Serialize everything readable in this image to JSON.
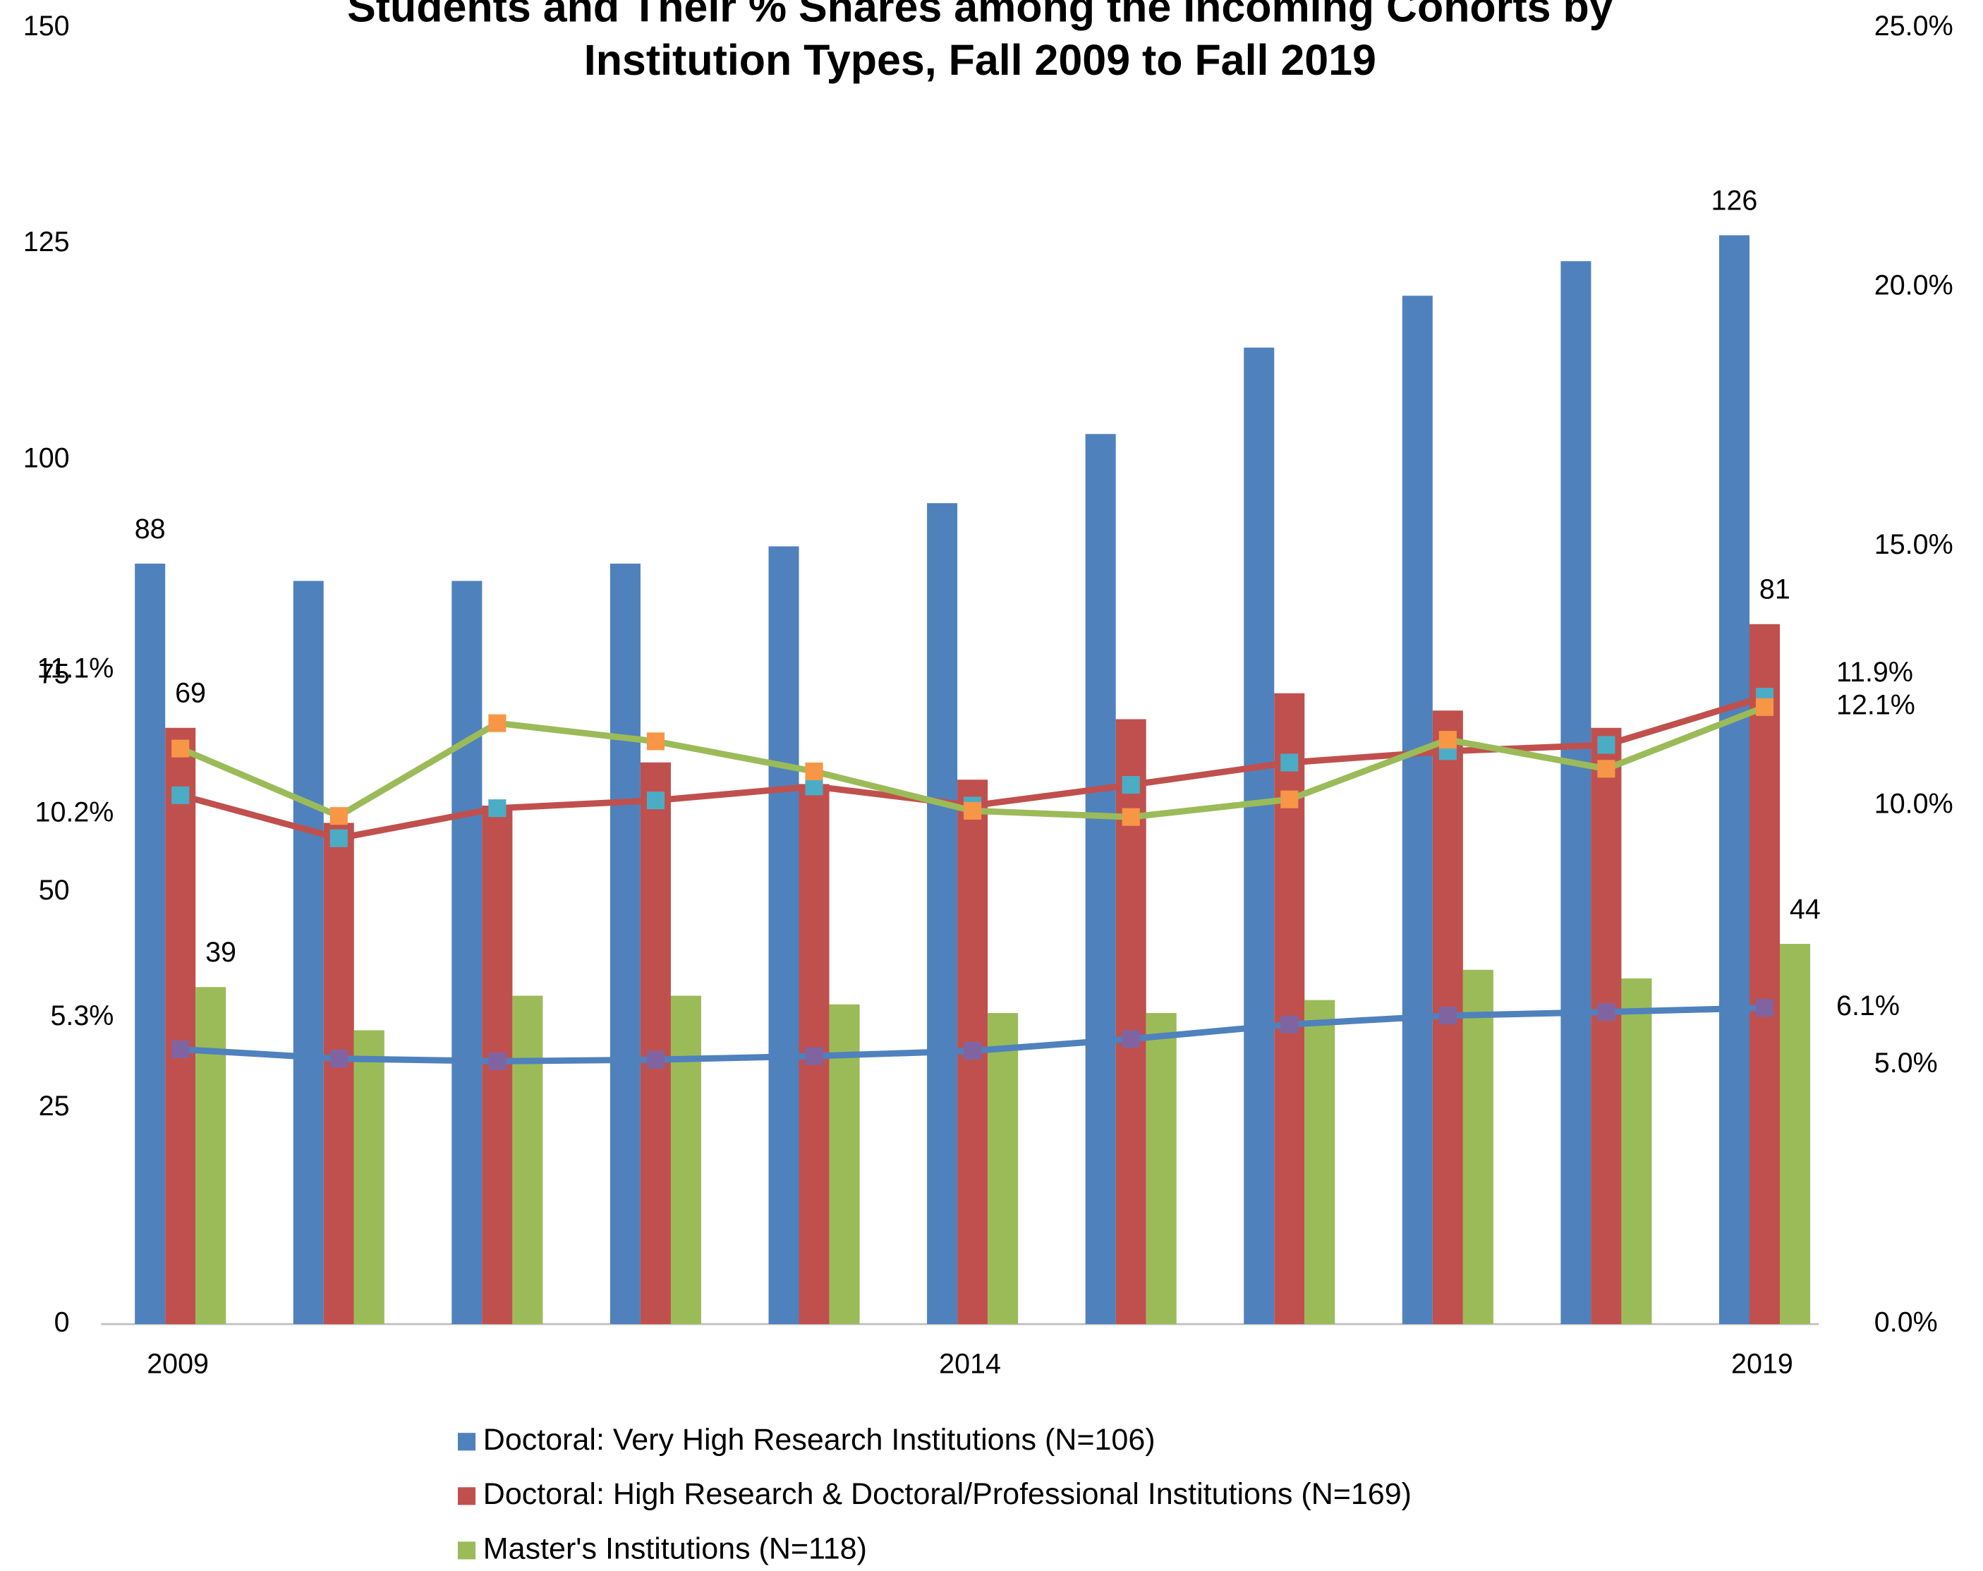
{
  "chart_data": {
    "type": "bar",
    "title": [
      "Students and Their % Shares among the Incoming Cohorts by",
      "Institution Types, Fall 2009 to Fall 2019"
    ],
    "categories": [
      "2009",
      null,
      null,
      null,
      null,
      "2014",
      null,
      null,
      null,
      null,
      "2019"
    ],
    "ylim": [
      0,
      150
    ],
    "yticks": [
      0,
      25,
      50,
      75,
      100,
      125,
      150
    ],
    "y2lim": [
      0,
      25
    ],
    "y2ticks": [
      {
        "value": 0,
        "label": "0.0%"
      },
      {
        "value": 5,
        "label": "5.0%"
      },
      {
        "value": 10,
        "label": "10.0%"
      },
      {
        "value": 15,
        "label": "15.0%"
      },
      {
        "value": 20,
        "label": "20.0%"
      },
      {
        "value": 25,
        "label": "25.0%"
      }
    ],
    "legend": "bottom",
    "series": [
      {
        "name": "Doctoral: Very High Research Institutions (N=106)",
        "color": "#4f81bd",
        "values": [
          88,
          86,
          86,
          88,
          90,
          95,
          103,
          113,
          119,
          123,
          126
        ]
      },
      {
        "name": "Doctoral: High Research & Doctoral/Professional Institutions (N=169)",
        "color": "#c0504d",
        "values": [
          69,
          58,
          60,
          65,
          62.5,
          63,
          70,
          73,
          71,
          69,
          81
        ]
      },
      {
        "name": "Master's Institutions (N=118)",
        "color": "#9bbb59",
        "values": [
          39,
          34,
          38,
          38,
          37,
          36,
          36,
          37.5,
          41,
          40,
          44
        ]
      },
      {
        "type": "line",
        "axis": "y2",
        "color": "#4f81bd",
        "marker_color": "#8064a2",
        "values": [
          5.3,
          5.12,
          5.07,
          5.1,
          5.17,
          5.27,
          5.5,
          5.78,
          5.95,
          6.02,
          6.1
        ],
        "value_labels": [
          "5.3%",
          null,
          null,
          null,
          null,
          null,
          null,
          null,
          null,
          null,
          "6.1%"
        ]
      },
      {
        "type": "line",
        "axis": "y2",
        "color": "#c0504d",
        "marker_color": "#4bacc6",
        "values": [
          10.2,
          9.37,
          9.95,
          10.1,
          10.37,
          10.0,
          10.4,
          10.83,
          11.05,
          11.17,
          12.1
        ],
        "value_labels": [
          "10.2%",
          null,
          null,
          null,
          null,
          null,
          null,
          null,
          null,
          null,
          "12.1%"
        ]
      },
      {
        "type": "line",
        "axis": "y2",
        "color": "#9bbb59",
        "marker_color": "#f79646",
        "values": [
          11.1,
          9.8,
          11.59,
          11.24,
          10.66,
          9.9,
          9.78,
          10.12,
          11.27,
          10.71,
          11.9
        ],
        "value_labels": [
          "11.1%",
          null,
          null,
          null,
          null,
          null,
          null,
          null,
          null,
          null,
          "11.9%"
        ]
      }
    ]
  }
}
